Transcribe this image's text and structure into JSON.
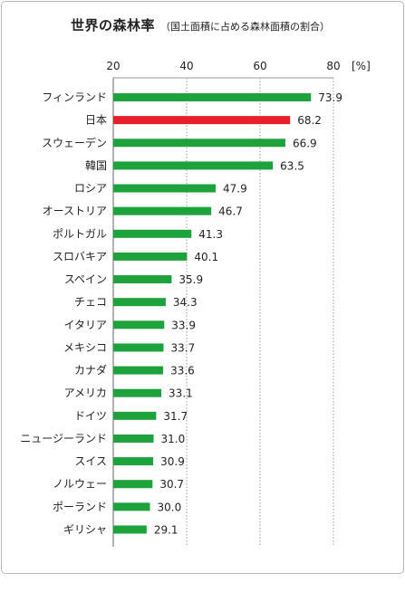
{
  "chart_data": {
    "type": "bar",
    "orientation": "horizontal",
    "title": "世界の森林率",
    "subtitle": "（国土面積に占める森林面積の割合）",
    "unit_label": "[%]",
    "xlim": [
      20,
      80
    ],
    "ticks": [
      20,
      40,
      60,
      80
    ],
    "grid": true,
    "categories": [
      "フィンランド",
      "日本",
      "スウェーデン",
      "韓国",
      "ロシア",
      "オーストリア",
      "ポルトガル",
      "スロバキア",
      "スペイン",
      "チェコ",
      "イタリア",
      "メキシコ",
      "カナダ",
      "アメリカ",
      "ドイツ",
      "ニュージーランド",
      "スイス",
      "ノルウェー",
      "ポーランド",
      "ギリシャ"
    ],
    "values": [
      73.9,
      68.2,
      66.9,
      63.5,
      47.9,
      46.7,
      41.3,
      40.1,
      35.9,
      34.3,
      33.9,
      33.7,
      33.6,
      33.1,
      31.7,
      31.0,
      30.9,
      30.7,
      30.0,
      29.1
    ],
    "value_labels": [
      "73.9",
      "68.2",
      "66.9",
      "63.5",
      "47.9",
      "46.7",
      "41.3",
      "40.1",
      "35.9",
      "34.3",
      "33.9",
      "33.7",
      "33.6",
      "33.1",
      "31.7",
      "31.0",
      "30.9",
      "30.7",
      "30.0",
      "29.1"
    ],
    "bar_color": "#1ea23c",
    "highlight_color": "#e8202a",
    "highlight_category": "日本"
  }
}
